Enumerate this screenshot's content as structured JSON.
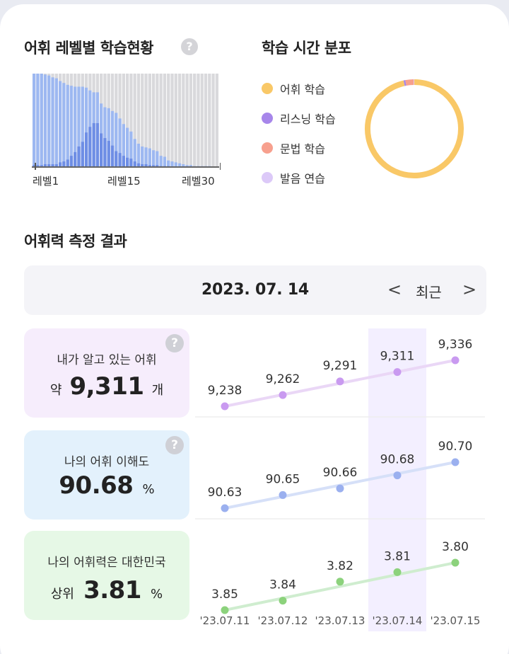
{
  "level_section": {
    "title": "어휘 레벨별 학습현황",
    "help_icon": "?",
    "axis_labels": [
      "레벨1",
      "레벨15",
      "레벨30"
    ],
    "chart_data": {
      "type": "bar",
      "categories": [
        "1",
        "2",
        "3",
        "4",
        "5",
        "6",
        "7",
        "8",
        "9",
        "10",
        "11",
        "12",
        "13",
        "14",
        "15",
        "16",
        "17",
        "18",
        "19",
        "20",
        "21",
        "22",
        "23",
        "24",
        "25",
        "26",
        "27",
        "28",
        "29",
        "30",
        "31",
        "32",
        "33",
        "34",
        "35",
        "36",
        "37",
        "38",
        "39",
        "40",
        "41",
        "42",
        "43",
        "44",
        "45",
        "46",
        "47",
        "48",
        "49",
        "50"
      ],
      "series": [
        {
          "values": [
            100,
            100,
            100,
            99,
            98,
            96,
            95,
            92,
            90,
            88,
            87,
            86,
            86,
            86,
            85,
            82,
            80,
            80,
            68,
            64,
            63,
            60,
            58,
            52,
            46,
            42,
            38,
            30,
            25,
            22,
            21,
            20,
            18,
            17,
            12,
            11,
            7,
            6,
            5,
            4,
            3,
            2,
            2,
            1,
            1,
            1,
            1,
            1,
            0,
            0
          ]
        },
        {
          "values": [
            2,
            2,
            2,
            3,
            3,
            3,
            3,
            5,
            6,
            8,
            12,
            16,
            22,
            27,
            37,
            43,
            47,
            47,
            36,
            31,
            28,
            23,
            17,
            15,
            12,
            10,
            9,
            6,
            4,
            3,
            3,
            2,
            2,
            2,
            1,
            1,
            1,
            0,
            0,
            0,
            0,
            0,
            0,
            0,
            0,
            0,
            0,
            0,
            0,
            0
          ]
        }
      ],
      "ylim": [
        0,
        100
      ],
      "colors": {
        "background": "#d9d9dc",
        "learned": "#9db8f1",
        "mastered": "#6e8ee5"
      }
    }
  },
  "time_section": {
    "title": "학습 시간 분포",
    "legend": [
      {
        "label": "어휘 학습",
        "color": "#f9c867"
      },
      {
        "label": "리스닝 학습",
        "color": "#a786ea"
      },
      {
        "label": "문법 학습",
        "color": "#f7a08e"
      },
      {
        "label": "발음 연습",
        "color": "#dcc9f8"
      }
    ],
    "chart_data": {
      "type": "pie",
      "labels": [
        "어휘 학습",
        "리스닝 학습",
        "문법 학습",
        "발음 연습"
      ],
      "values": [
        96.5,
        0.6,
        2.7,
        0.2
      ],
      "colors": [
        "#f9c867",
        "#a786ea",
        "#f7a08e",
        "#dcc9f8"
      ]
    }
  },
  "result_section": {
    "title": "어휘력 측정 결과",
    "date": "2023. 07. 14",
    "prev_icon": "<",
    "next_icon": ">",
    "recent_label": "최근",
    "dates": [
      "'23.07.11",
      "'23.07.12",
      "'23.07.13",
      "'23.07.14",
      "'23.07.15"
    ],
    "colors": {
      "highlight": "#f3efff"
    },
    "cards": [
      {
        "label": "내가 알고 있는 어휘",
        "prefix": "약",
        "value": "9,311",
        "unit": "개",
        "help_icon": "?",
        "bg": "#f6edfc",
        "line_color": "#ead7f6",
        "dot_color": "#c99af0"
      },
      {
        "label": "나의 어휘 이해도",
        "prefix": "",
        "value": "90.68",
        "unit": "%",
        "help_icon": "?",
        "bg": "#e3f1fc",
        "line_color": "#d6e0f8",
        "dot_color": "#9bb0ef"
      },
      {
        "label": "나의 어휘력은 대한민국",
        "prefix": "상위",
        "value": "3.81",
        "unit": "%",
        "help_icon": "",
        "bg": "#e6f8e6",
        "line_color": "#cfedcf",
        "dot_color": "#8cd27c"
      }
    ],
    "chart_data": [
      {
        "type": "line",
        "x": [
          "'23.07.11",
          "'23.07.12",
          "'23.07.13",
          "'23.07.14",
          "'23.07.15"
        ],
        "series": [
          {
            "values": [
              9238,
              9262,
              9291,
              9311,
              9336
            ]
          }
        ],
        "labels": [
          "9,238",
          "9,262",
          "9,291",
          "9,311",
          "9,336"
        ]
      },
      {
        "type": "line",
        "x": [
          "'23.07.11",
          "'23.07.12",
          "'23.07.13",
          "'23.07.14",
          "'23.07.15"
        ],
        "series": [
          {
            "values": [
              90.63,
              90.65,
              90.66,
              90.68,
              90.7
            ]
          }
        ],
        "labels": [
          "90.63",
          "90.65",
          "90.66",
          "90.68",
          "90.70"
        ]
      },
      {
        "type": "line",
        "x": [
          "'23.07.11",
          "'23.07.12",
          "'23.07.13",
          "'23.07.14",
          "'23.07.15"
        ],
        "series": [
          {
            "values": [
              3.85,
              3.84,
              3.82,
              3.81,
              3.8
            ]
          }
        ],
        "labels": [
          "3.85",
          "3.84",
          "3.82",
          "3.81",
          "3.80"
        ]
      }
    ]
  }
}
